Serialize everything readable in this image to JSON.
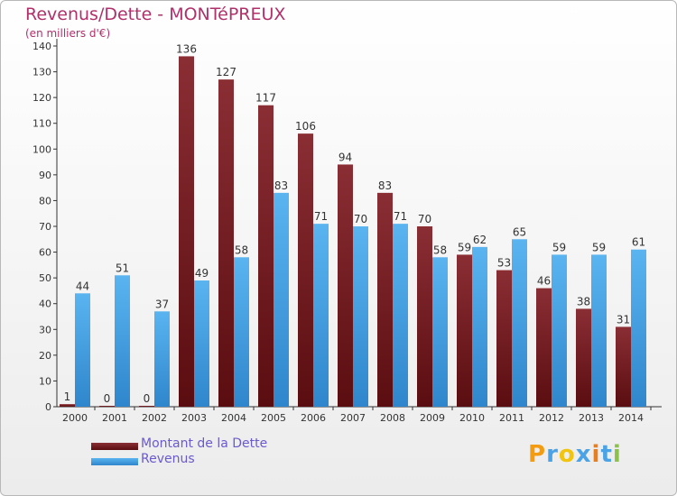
{
  "chart_data": {
    "type": "bar",
    "title": "Revenus/Dette - MONTéPREUX",
    "subtitle": "(en milliers d'€)",
    "categories": [
      "2000",
      "2001",
      "2002",
      "2003",
      "2004",
      "2005",
      "2006",
      "2007",
      "2008",
      "2009",
      "2010",
      "2011",
      "2012",
      "2013",
      "2014"
    ],
    "series": [
      {
        "name": "Montant de la Dette",
        "color": "#6e1a1e",
        "values": [
          1,
          0,
          0,
          136,
          127,
          117,
          106,
          94,
          83,
          70,
          59,
          53,
          46,
          38,
          31
        ]
      },
      {
        "name": "Revenus",
        "color": "#4aa3e6",
        "values": [
          44,
          51,
          37,
          49,
          58,
          83,
          71,
          70,
          71,
          58,
          62,
          65,
          59,
          59,
          61
        ]
      }
    ],
    "ylim": [
      0,
      140
    ],
    "yticks": [
      0,
      10,
      20,
      30,
      40,
      50,
      60,
      70,
      80,
      90,
      100,
      110,
      120,
      130,
      140
    ],
    "xlabel": "",
    "ylabel": "",
    "grid": false,
    "legend": "bottom-left"
  },
  "logo": {
    "text": "Proxiti",
    "letters": [
      {
        "char": "P",
        "color": "#f39c12"
      },
      {
        "char": "r",
        "color": "#4aa3e6"
      },
      {
        "char": "o",
        "color": "#f1c40f"
      },
      {
        "char": "x",
        "color": "#4aa3e6"
      },
      {
        "char": "i",
        "color": "#e67e22"
      },
      {
        "char": "t",
        "color": "#4aa3e6"
      },
      {
        "char": "i",
        "color": "#8bc34a"
      }
    ]
  }
}
